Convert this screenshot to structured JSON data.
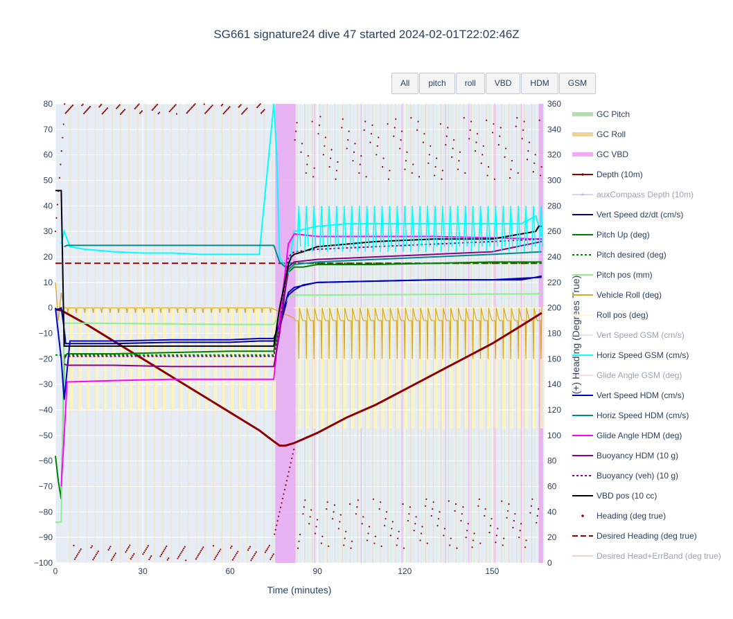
{
  "title": "SG661 signature24 dive 47 started 2024-02-01T22:02:46Z",
  "buttons": [
    "All",
    "pitch",
    "roll",
    "VBD",
    "HDM",
    "GSM"
  ],
  "chart_data": {
    "type": "line",
    "xlabel": "Time (minutes)",
    "ylabel": "",
    "y2label": "(+) Heading (Degrees True)",
    "xlim": [
      0,
      168
    ],
    "ylim": [
      -100,
      80
    ],
    "y2lim": [
      0,
      360
    ],
    "xticks": [
      0,
      30,
      60,
      90,
      120,
      150
    ],
    "yticks": [
      -100,
      -90,
      -80,
      -70,
      -60,
      -50,
      -40,
      -30,
      -20,
      -10,
      0,
      10,
      20,
      30,
      40,
      50,
      60,
      70,
      80
    ],
    "y2ticks": [
      0,
      20,
      40,
      60,
      80,
      100,
      120,
      140,
      160,
      180,
      200,
      220,
      240,
      260,
      280,
      300,
      320,
      340,
      360
    ],
    "legend_placement": "right",
    "shaded_regions": [
      {
        "name": "GC VBD",
        "x": [
          75.5,
          82.5
        ],
        "color": "#e8a8f0"
      },
      {
        "name": "GC VBD",
        "x": [
          166,
          167.5
        ],
        "color": "#e8a8f0"
      }
    ],
    "series": [
      {
        "name": "GC Pitch",
        "color": "#b7dcb0",
        "style": "band",
        "visible": true
      },
      {
        "name": "GC Roll",
        "color": "#edd29a",
        "style": "band",
        "visible": true
      },
      {
        "name": "GC VBD",
        "color": "#f6a8f8",
        "style": "band",
        "visible": true
      },
      {
        "name": "Depth (10m)",
        "color": "#8b0000",
        "style": "solid",
        "visible": true,
        "x": [
          0,
          2,
          10,
          20,
          30,
          40,
          50,
          60,
          70,
          74,
          77,
          79,
          82,
          90,
          100,
          110,
          120,
          130,
          140,
          150,
          160,
          167
        ],
        "y": [
          -0.5,
          -1,
          -6,
          -13,
          -20,
          -27,
          -34,
          -41,
          -48,
          -51.5,
          -54,
          -54,
          -53,
          -49,
          -43,
          -38,
          -32,
          -26,
          -20,
          -14,
          -7,
          -2
        ]
      },
      {
        "name": "auxCompass Depth (10m)",
        "color": "#c29de6",
        "style": "solid",
        "visible": false
      },
      {
        "name": "Vert Speed dz/dt (cm/s)",
        "color": "#00008b",
        "style": "solid",
        "visible": true,
        "x": [
          0,
          2,
          3,
          3.5,
          5,
          20,
          40,
          60,
          70,
          75,
          77,
          80,
          82,
          85,
          90,
          110,
          130,
          150,
          160,
          165,
          167
        ],
        "y": [
          -1,
          0,
          -8,
          -14,
          -14,
          -14,
          -13.5,
          -13.5,
          -13,
          -13,
          -8,
          5,
          7,
          9,
          10,
          10.5,
          11,
          11,
          11,
          12,
          12.5
        ]
      },
      {
        "name": "Pitch Up (deg)",
        "color": "#008000",
        "style": "solid",
        "visible": true,
        "x": [
          0,
          1,
          2,
          3,
          4,
          5,
          20,
          40,
          60,
          70,
          75,
          77,
          80,
          82,
          85,
          90,
          110,
          130,
          150,
          167
        ],
        "y": [
          -58,
          -68,
          -75,
          -20,
          -18,
          -18,
          -18,
          -17.5,
          -17,
          -17,
          -17,
          -5,
          14,
          16,
          16,
          17,
          17,
          17.5,
          18,
          18
        ]
      },
      {
        "name": "Pitch desired (deg)",
        "color": "#008000",
        "style": "dot",
        "visible": true,
        "x": [
          0,
          75,
          77,
          80,
          82,
          167
        ],
        "y": [
          -18.5,
          -18.5,
          -5,
          17,
          17.5,
          17.5
        ]
      },
      {
        "name": "Pitch pos (mm)",
        "color": "#90ee90",
        "style": "solid",
        "visible": true,
        "x": [
          0,
          2,
          3,
          10,
          60,
          75,
          77,
          80,
          82,
          167
        ],
        "y": [
          -84,
          -84,
          -6,
          -6,
          -6.5,
          -6.5,
          -2,
          4,
          5,
          5.5
        ]
      },
      {
        "name": "Vehicle Roll (deg)",
        "color": "#daa520",
        "style": "solid",
        "visible": true,
        "x": [
          0,
          1,
          2,
          3,
          20,
          40,
          60,
          75,
          82,
          100,
          120,
          140,
          167
        ],
        "y": [
          10,
          -5,
          5,
          0,
          0,
          0,
          0,
          0,
          0,
          0,
          0,
          0,
          0
        ]
      },
      {
        "name": "Roll pos (deg)",
        "color": "#fffacd",
        "style": "solid",
        "visible": true,
        "x": [
          0,
          167
        ],
        "y": [
          0,
          0
        ]
      },
      {
        "name": "Vert Speed GSM (cm/s)",
        "color": "#bcd4f0",
        "style": "solid",
        "visible": false
      },
      {
        "name": "Horiz Speed GSM (cm/s)",
        "color": "#00ffff",
        "style": "solid",
        "visible": true,
        "x": [
          2,
          3,
          5,
          10,
          20,
          30,
          40,
          50,
          60,
          70,
          75,
          76,
          77,
          80,
          82,
          90,
          100,
          110,
          120,
          130,
          140,
          150,
          160,
          165,
          167
        ],
        "y": [
          25,
          30,
          24,
          23,
          22,
          21.5,
          21.5,
          21,
          21,
          21,
          80,
          60,
          20,
          14,
          30,
          32,
          33,
          33,
          33,
          33,
          33,
          33,
          33,
          36,
          28
        ]
      },
      {
        "name": "Glide Angle GSM (deg)",
        "color": "#f0b8e8",
        "style": "solid",
        "visible": false
      },
      {
        "name": "Vert Speed HDM (cm/s)",
        "color": "#0000cd",
        "style": "solid",
        "visible": true,
        "x": [
          0,
          2,
          3,
          5,
          20,
          40,
          60,
          70,
          75,
          77,
          80,
          82,
          90,
          110,
          130,
          150,
          167
        ],
        "y": [
          0,
          -20,
          -36,
          -13,
          -13,
          -12.5,
          -12.5,
          -12,
          -12,
          -6,
          6,
          8,
          10,
          10.5,
          11,
          11,
          12
        ]
      },
      {
        "name": "Horiz Speed HDM (cm/s)",
        "color": "#008b8b",
        "style": "solid",
        "visible": true,
        "x": [
          3,
          4,
          20,
          40,
          60,
          75,
          77,
          80,
          82,
          90,
          110,
          130,
          150,
          167
        ],
        "y": [
          24,
          24.5,
          24.5,
          24.5,
          24.5,
          24.5,
          18,
          15,
          17,
          18,
          19,
          20,
          21,
          22
        ]
      },
      {
        "name": "Glide Angle HDM (deg)",
        "color": "#ff00ff",
        "style": "solid",
        "visible": true,
        "x": [
          2,
          3,
          4,
          5,
          20,
          40,
          60,
          75,
          77,
          80,
          82,
          90,
          110,
          130,
          150,
          167
        ],
        "y": [
          -70,
          -50,
          -29,
          -29,
          -28.5,
          -28,
          -28,
          -28,
          -5,
          25,
          29,
          28,
          28,
          28,
          27.5,
          27
        ]
      },
      {
        "name": "Buoyancy HDM (10 g)",
        "color": "#8b008b",
        "style": "solid",
        "visible": true,
        "x": [
          3,
          4,
          20,
          40,
          60,
          75,
          77,
          80,
          82,
          90,
          110,
          130,
          150,
          167
        ],
        "y": [
          -22,
          -22.5,
          -22.5,
          -23,
          -23,
          -23,
          -10,
          16,
          18,
          19,
          20,
          21,
          22,
          26
        ]
      },
      {
        "name": "Buoyancy (veh) (10 g)",
        "color": "#8b008b",
        "style": "dot",
        "visible": true,
        "x": [
          3,
          4,
          75,
          77,
          80,
          82,
          90,
          110,
          130,
          150,
          167
        ],
        "y": [
          -19,
          -19,
          -19,
          -8,
          20,
          22,
          23,
          24,
          25,
          26,
          27
        ]
      },
      {
        "name": "VBD pos (10 cc)",
        "color": "#000000",
        "style": "solid",
        "visible": true,
        "x": [
          0,
          2,
          3,
          5,
          70,
          75,
          77,
          80,
          81,
          82,
          85,
          90,
          100,
          110,
          130,
          150,
          155,
          160,
          165,
          166,
          167
        ],
        "y": [
          46,
          46,
          -15,
          -15,
          -15,
          -15,
          0,
          17,
          20,
          21,
          22,
          24,
          25,
          26,
          27,
          27,
          28,
          29,
          30,
          32,
          32
        ]
      },
      {
        "name": "Heading (deg true)",
        "color": "#8b0000",
        "style": "markers",
        "visible": true,
        "axis": "y2",
        "note": "scattered cyclic heading points across full time range"
      },
      {
        "name": "Desired Heading (deg true)",
        "color": "#8b0000",
        "style": "dash",
        "visible": true,
        "axis": "y2",
        "x": [
          0,
          167
        ],
        "y": [
          235,
          235
        ]
      },
      {
        "name": "Desired Head+ErrBand (deg true)",
        "color": "#e9a893",
        "style": "solid",
        "visible": false,
        "axis": "y2"
      }
    ]
  }
}
